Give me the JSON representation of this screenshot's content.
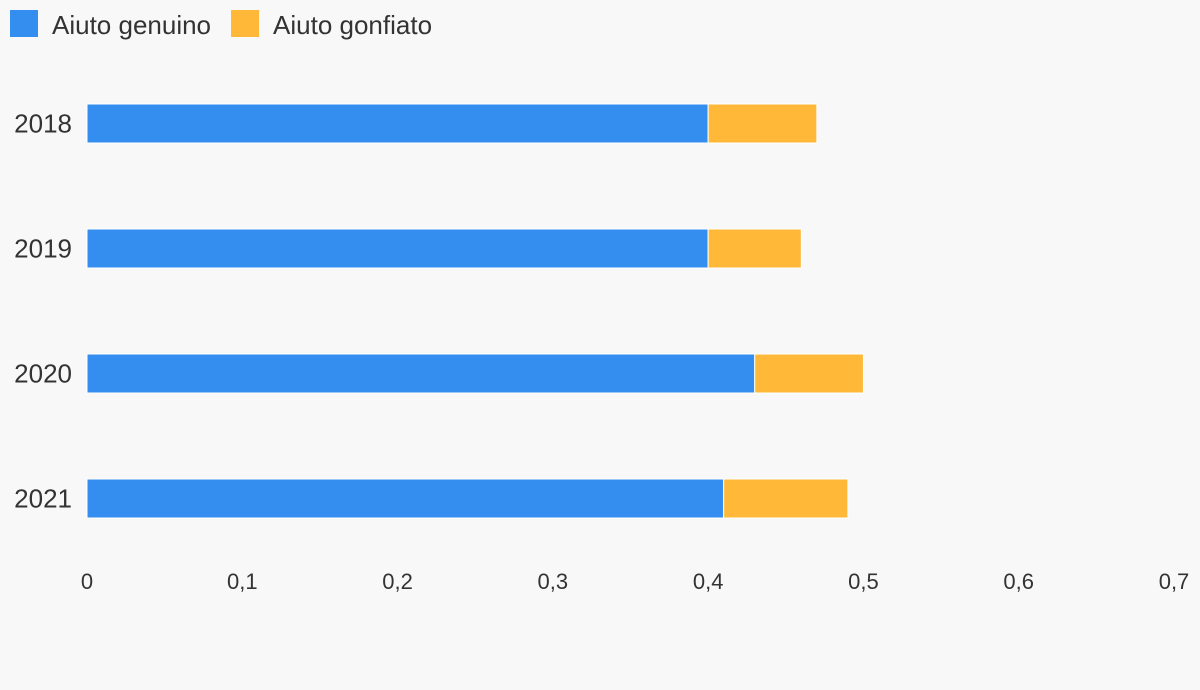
{
  "chart_data": {
    "type": "bar",
    "orientation": "horizontal",
    "stacked": true,
    "categories": [
      "2018",
      "2019",
      "2020",
      "2021"
    ],
    "series": [
      {
        "name": "Aiuto genuino",
        "color": "#348ef0",
        "values": [
          0.4,
          0.4,
          0.43,
          0.41
        ]
      },
      {
        "name": "Aiuto gonfiato",
        "color": "#ffb837",
        "values": [
          0.07,
          0.06,
          0.07,
          0.08
        ]
      }
    ],
    "xlim": [
      0,
      0.7
    ],
    "xticks": [
      0,
      {
        "value": 0.1,
        "label": "0,1"
      },
      {
        "value": 0.2,
        "label": "0,2"
      },
      {
        "value": 0.3,
        "label": "0,3"
      },
      {
        "value": 0.4,
        "label": "0,4"
      },
      {
        "value": 0.5,
        "label": "0,5"
      },
      {
        "value": 0.6,
        "label": "0,6"
      },
      {
        "value": 0.7,
        "label": "0,7"
      }
    ],
    "grid": false,
    "legend": "top-left"
  }
}
